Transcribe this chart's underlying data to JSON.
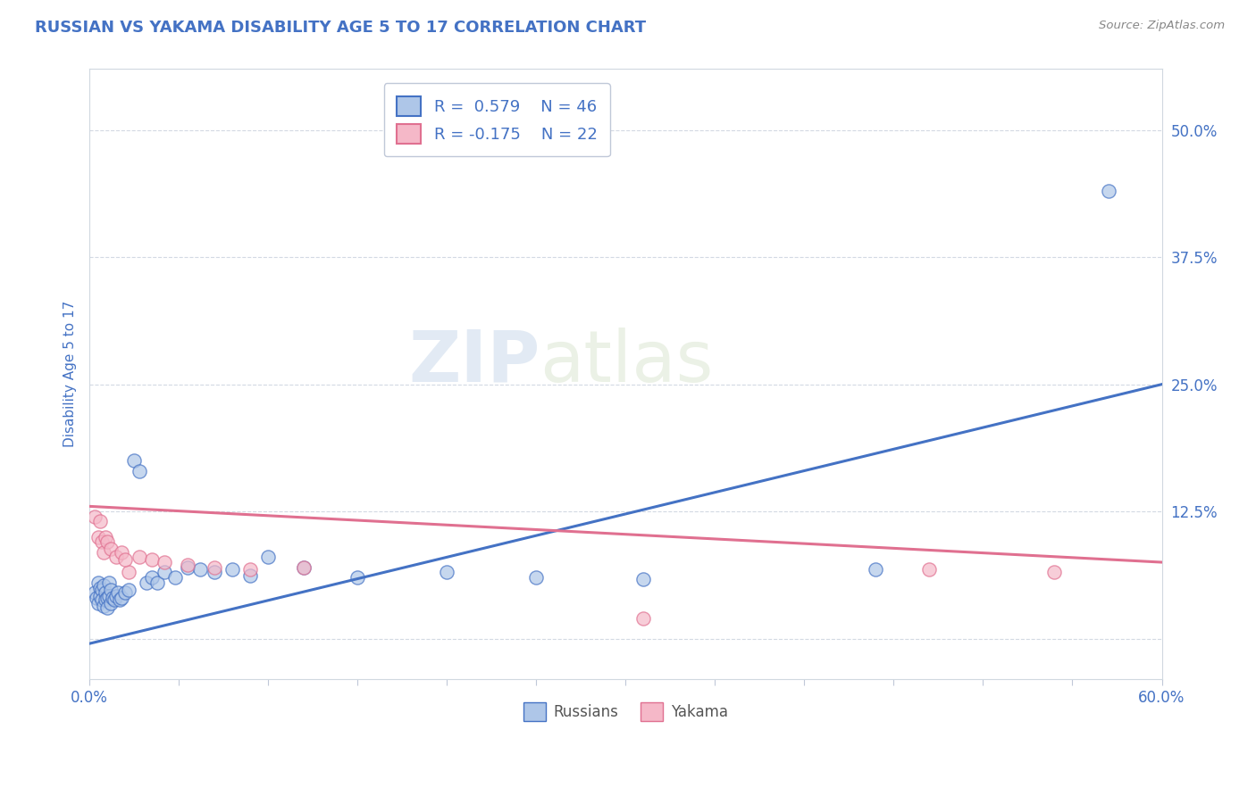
{
  "title": "RUSSIAN VS YAKAMA DISABILITY AGE 5 TO 17 CORRELATION CHART",
  "source_text": "Source: ZipAtlas.com",
  "ylabel": "Disability Age 5 to 17",
  "xlim": [
    0.0,
    0.6
  ],
  "ylim": [
    -0.04,
    0.56
  ],
  "ytick_pos": [
    0.0,
    0.125,
    0.25,
    0.375,
    0.5
  ],
  "ytick_labels": [
    "",
    "12.5%",
    "25.0%",
    "37.5%",
    "50.0%"
  ],
  "russian_R": 0.579,
  "russian_N": 46,
  "yakama_R": -0.175,
  "yakama_N": 22,
  "russian_color": "#aec6e8",
  "yakama_color": "#f5b8c8",
  "russian_line_color": "#4472c4",
  "yakama_line_color": "#e07090",
  "title_color": "#4472c4",
  "axis_label_color": "#4472c4",
  "tick_label_color": "#4472c4",
  "grid_color": "#c8d0dc",
  "watermark_text1": "ZIP",
  "watermark_text2": "atlas",
  "russian_scatter_x": [
    0.003,
    0.004,
    0.005,
    0.005,
    0.006,
    0.006,
    0.007,
    0.007,
    0.008,
    0.008,
    0.009,
    0.009,
    0.01,
    0.01,
    0.011,
    0.011,
    0.012,
    0.012,
    0.013,
    0.014,
    0.015,
    0.016,
    0.017,
    0.018,
    0.02,
    0.022,
    0.025,
    0.028,
    0.032,
    0.035,
    0.038,
    0.042,
    0.048,
    0.055,
    0.062,
    0.07,
    0.08,
    0.09,
    0.1,
    0.12,
    0.15,
    0.2,
    0.25,
    0.31,
    0.44,
    0.57
  ],
  "russian_scatter_y": [
    0.045,
    0.04,
    0.055,
    0.035,
    0.05,
    0.042,
    0.048,
    0.038,
    0.052,
    0.032,
    0.045,
    0.038,
    0.04,
    0.03,
    0.055,
    0.042,
    0.048,
    0.035,
    0.04,
    0.038,
    0.042,
    0.045,
    0.038,
    0.04,
    0.045,
    0.048,
    0.175,
    0.165,
    0.055,
    0.06,
    0.055,
    0.065,
    0.06,
    0.07,
    0.068,
    0.065,
    0.068,
    0.062,
    0.08,
    0.07,
    0.06,
    0.065,
    0.06,
    0.058,
    0.068,
    0.44
  ],
  "yakama_scatter_x": [
    0.003,
    0.005,
    0.006,
    0.007,
    0.008,
    0.009,
    0.01,
    0.012,
    0.015,
    0.018,
    0.022,
    0.028,
    0.035,
    0.042,
    0.055,
    0.07,
    0.09,
    0.12,
    0.31,
    0.47,
    0.54,
    0.02
  ],
  "yakama_scatter_y": [
    0.12,
    0.1,
    0.115,
    0.095,
    0.085,
    0.1,
    0.095,
    0.088,
    0.08,
    0.085,
    0.065,
    0.08,
    0.078,
    0.075,
    0.072,
    0.07,
    0.068,
    0.07,
    0.02,
    0.068,
    0.065,
    0.078
  ],
  "russian_trend_x": [
    0.0,
    0.6
  ],
  "russian_trend_y": [
    -0.005,
    0.25
  ],
  "yakama_trend_x": [
    0.0,
    0.6
  ],
  "yakama_trend_y": [
    0.13,
    0.075
  ]
}
